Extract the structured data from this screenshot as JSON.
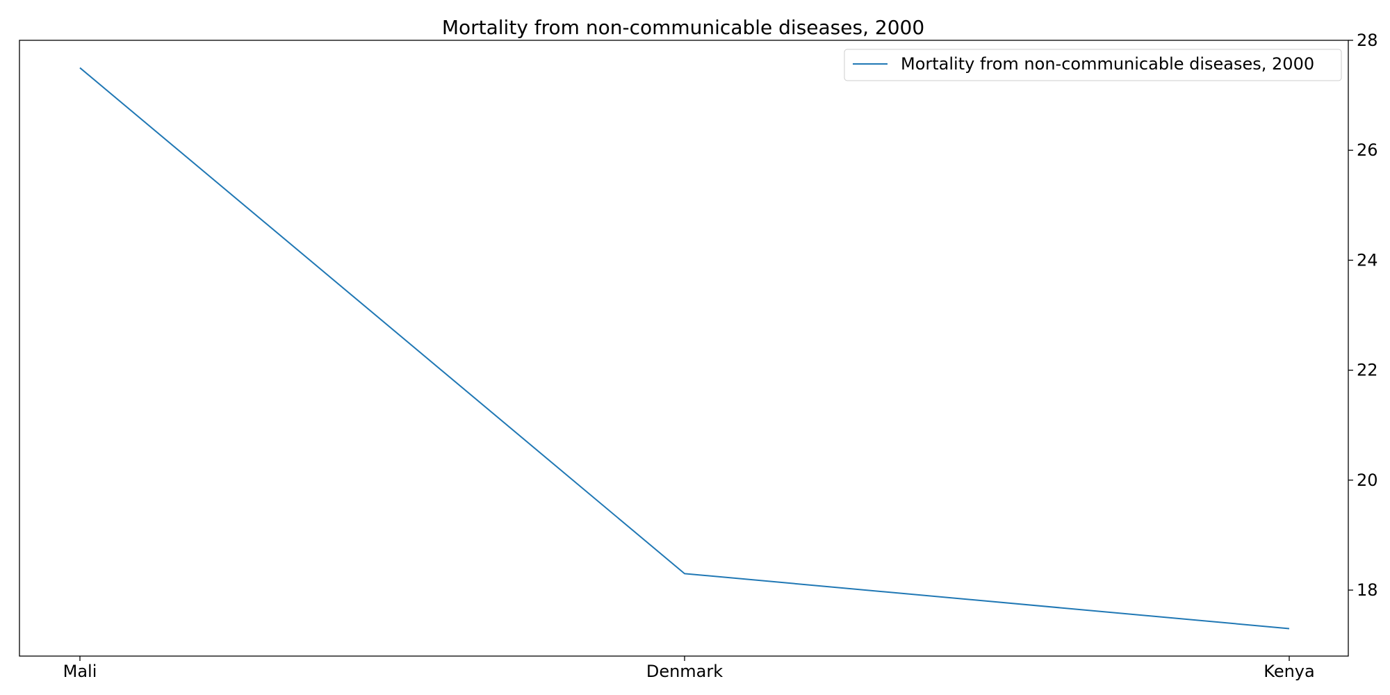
{
  "chart_data": {
    "type": "line",
    "title": "Mortality from non-communicable diseases, 2000",
    "xlabel": "",
    "ylabel": "",
    "categories": [
      "Mali",
      "Denmark",
      "Kenya"
    ],
    "series": [
      {
        "name": "Mortality from non-communicable diseases, 2000",
        "values": [
          27.5,
          18.3,
          17.3
        ],
        "color": "#1f77b4"
      }
    ],
    "ylim": [
      16.8,
      28.0
    ],
    "yticks": [
      18,
      20,
      22,
      24,
      26,
      28
    ],
    "y_axis_side": "right",
    "grid": false,
    "legend_position": "top-right"
  }
}
